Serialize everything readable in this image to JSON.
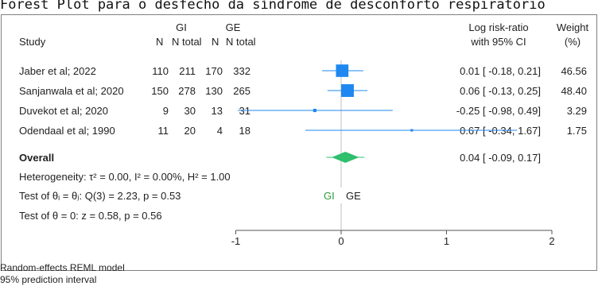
{
  "caption": "Forest Plot para o desfecho da síndrome de desconforto respiratório",
  "chart_data": {
    "type": "forest",
    "headers": {
      "study": "Study",
      "group1": "GI",
      "group2": "GE",
      "n": "N",
      "ntotal": "N total",
      "effect_line1": "Log risk-ratio",
      "effect_line2": "with 95% CI",
      "weight_line1": "Weight",
      "weight_line2": "(%)"
    },
    "studies": [
      {
        "study": "Jaber et al;  2022",
        "g1_n": "110",
        "g1_total": "211",
        "g2_n": "170",
        "g2_total": "332",
        "est": 0.01,
        "lo": -0.18,
        "hi": 0.21,
        "ci_text": "0.01 [ -0.18,  0.21]",
        "weight": "46.56"
      },
      {
        "study": "Sanjanwala et al;  2020",
        "g1_n": "150",
        "g1_total": "278",
        "g2_n": "130",
        "g2_total": "265",
        "est": 0.06,
        "lo": -0.13,
        "hi": 0.25,
        "ci_text": "0.06 [ -0.13,  0.25]",
        "weight": "48.40"
      },
      {
        "study": "Duvekot et al;  2020",
        "g1_n": "9",
        "g1_total": "30",
        "g2_n": "13",
        "g2_total": "31",
        "est": -0.25,
        "lo": -0.98,
        "hi": 0.49,
        "ci_text": "-0.25 [ -0.98,  0.49]",
        "weight": "3.29"
      },
      {
        "study": "Odendaal et al;  1990",
        "g1_n": "11",
        "g1_total": "20",
        "g2_n": "4",
        "g2_total": "18",
        "est": 0.67,
        "lo": -0.34,
        "hi": 1.67,
        "ci_text": "0.67 [ -0.34,  1.67]",
        "weight": "1.75"
      }
    ],
    "overall": {
      "label": "Overall",
      "est": 0.04,
      "lo": -0.09,
      "hi": 0.17,
      "ci_text": "0.04 [ -0.09,  0.17]",
      "pi_lo": -0.14,
      "pi_hi": 0.22
    },
    "heterogeneity": "Heterogeneity: τ² = 0.00, I² = 0.00%, H² = 1.00",
    "test_homog": "Test of θᵢ = θⱼ: Q(3) = 2.23, p = 0.53",
    "test_effect": "Test of θ = 0: z = 0.58, p = 0.56",
    "favor_left": "GI",
    "favor_right": "GE",
    "xaxis": {
      "ticks": [
        -1,
        0,
        1,
        2
      ],
      "tick_labels": [
        "-1",
        "0",
        "1",
        "2"
      ],
      "range": [
        -1,
        2
      ]
    },
    "footnote1": "Random-effects REML model",
    "footnote2": "95% prediction interval",
    "colors": {
      "study": "#1e88f0",
      "overall": "#2fbf6d",
      "favor_left": "#2e9a3a",
      "axis": "#555555",
      "grid": "#bfbfbf"
    }
  }
}
